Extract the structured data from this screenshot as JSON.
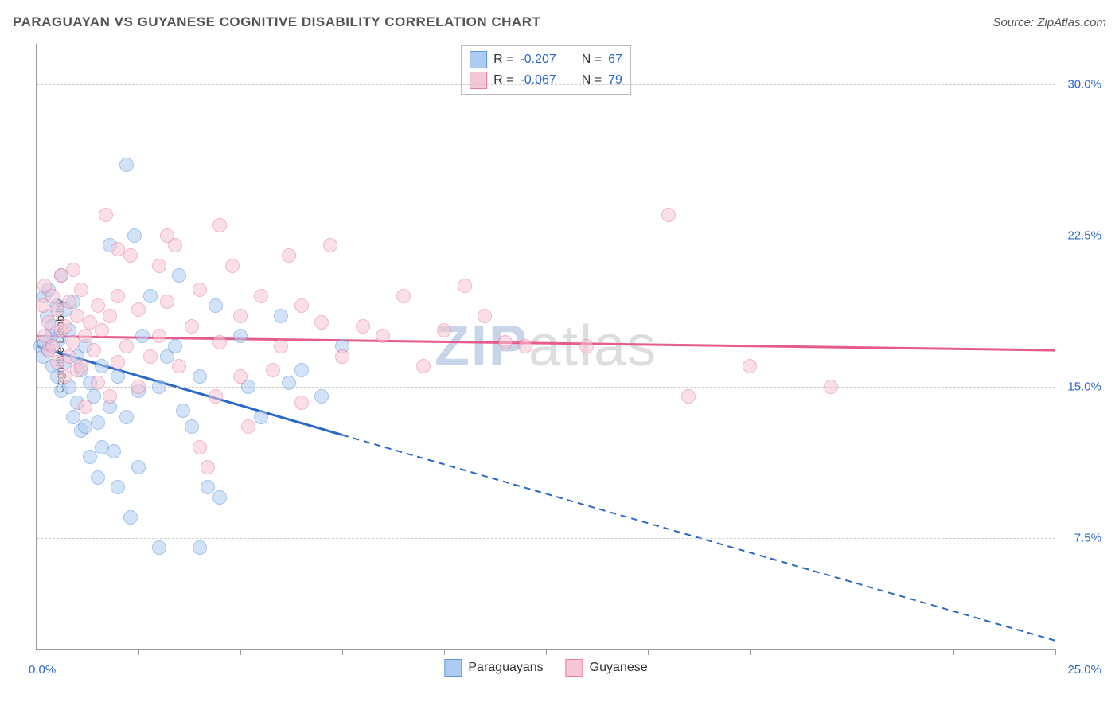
{
  "title": "PARAGUAYAN VS GUYANESE COGNITIVE DISABILITY CORRELATION CHART",
  "source": "Source: ZipAtlas.com",
  "watermark_bold": "ZIP",
  "watermark_rest": "atlas",
  "y_axis_label": "Cognitive Disability",
  "chart": {
    "type": "scatter",
    "xlim": [
      0,
      25
    ],
    "ylim": [
      2,
      32
    ],
    "x_ticks": [
      0,
      2.5,
      5,
      7.5,
      10,
      12.5,
      15,
      17.5,
      20,
      22.5,
      25
    ],
    "y_gridlines": [
      7.5,
      15.0,
      22.5,
      30.0
    ],
    "y_tick_labels": [
      "7.5%",
      "15.0%",
      "22.5%",
      "30.0%"
    ],
    "x_min_label": "0.0%",
    "x_max_label": "25.0%",
    "background_color": "#ffffff",
    "grid_color": "#cccccc",
    "axis_color": "#999999",
    "tick_label_color": "#2968c8",
    "point_radius": 9,
    "point_opacity": 0.55,
    "series": [
      {
        "name": "Paraguayans",
        "color_fill": "#aeccf2",
        "color_stroke": "#5a95dd",
        "R": "-0.207",
        "N": "67",
        "trend": {
          "color": "#2968c8",
          "width": 3,
          "x1": 0,
          "y1": 17.0,
          "x2_solid": 7.5,
          "y2_solid": 12.6,
          "x2_dash": 25,
          "y2_dash": 2.4
        },
        "points": [
          [
            0.1,
            17.0
          ],
          [
            0.15,
            16.5
          ],
          [
            0.2,
            19.5
          ],
          [
            0.2,
            17.2
          ],
          [
            0.25,
            18.5
          ],
          [
            0.3,
            19.8
          ],
          [
            0.3,
            16.8
          ],
          [
            0.35,
            17.5
          ],
          [
            0.4,
            18.0
          ],
          [
            0.4,
            16.0
          ],
          [
            0.5,
            19.0
          ],
          [
            0.5,
            15.5
          ],
          [
            0.55,
            17.3
          ],
          [
            0.6,
            20.5
          ],
          [
            0.6,
            14.8
          ],
          [
            0.7,
            16.2
          ],
          [
            0.7,
            18.8
          ],
          [
            0.8,
            15.0
          ],
          [
            0.8,
            17.8
          ],
          [
            0.9,
            19.2
          ],
          [
            0.9,
            13.5
          ],
          [
            1.0,
            16.5
          ],
          [
            1.0,
            14.2
          ],
          [
            1.1,
            15.8
          ],
          [
            1.1,
            12.8
          ],
          [
            1.2,
            17.0
          ],
          [
            1.2,
            13.0
          ],
          [
            1.3,
            15.2
          ],
          [
            1.3,
            11.5
          ],
          [
            1.4,
            14.5
          ],
          [
            1.5,
            13.2
          ],
          [
            1.5,
            10.5
          ],
          [
            1.6,
            16.0
          ],
          [
            1.6,
            12.0
          ],
          [
            1.8,
            22.0
          ],
          [
            1.8,
            14.0
          ],
          [
            1.9,
            11.8
          ],
          [
            2.0,
            15.5
          ],
          [
            2.0,
            10.0
          ],
          [
            2.2,
            26.0
          ],
          [
            2.2,
            13.5
          ],
          [
            2.3,
            8.5
          ],
          [
            2.5,
            14.8
          ],
          [
            2.5,
            11.0
          ],
          [
            2.6,
            17.5
          ],
          [
            2.8,
            19.5
          ],
          [
            3.0,
            15.0
          ],
          [
            3.0,
            7.0
          ],
          [
            3.2,
            16.5
          ],
          [
            3.4,
            17.0
          ],
          [
            3.5,
            20.5
          ],
          [
            3.6,
            13.8
          ],
          [
            3.8,
            13.0
          ],
          [
            4.0,
            15.5
          ],
          [
            4.0,
            7.0
          ],
          [
            4.2,
            10.0
          ],
          [
            4.4,
            19.0
          ],
          [
            4.5,
            9.5
          ],
          [
            5.0,
            17.5
          ],
          [
            5.2,
            15.0
          ],
          [
            5.5,
            13.5
          ],
          [
            6.0,
            18.5
          ],
          [
            6.2,
            15.2
          ],
          [
            6.5,
            15.8
          ],
          [
            7.0,
            14.5
          ],
          [
            7.5,
            17.0
          ],
          [
            2.4,
            22.5
          ]
        ]
      },
      {
        "name": "Guyanese",
        "color_fill": "#f7c6d4",
        "color_stroke": "#e97ba1",
        "R": "-0.067",
        "N": "79",
        "trend": {
          "color": "#e65a8c",
          "width": 3,
          "x1": 0,
          "y1": 17.5,
          "x2_solid": 25,
          "y2_solid": 16.8,
          "x2_dash": 25,
          "y2_dash": 16.8
        },
        "points": [
          [
            0.15,
            19.0
          ],
          [
            0.2,
            17.5
          ],
          [
            0.2,
            20.0
          ],
          [
            0.3,
            18.2
          ],
          [
            0.3,
            16.8
          ],
          [
            0.4,
            19.5
          ],
          [
            0.4,
            17.0
          ],
          [
            0.5,
            18.8
          ],
          [
            0.5,
            16.2
          ],
          [
            0.6,
            20.5
          ],
          [
            0.6,
            17.8
          ],
          [
            0.7,
            18.0
          ],
          [
            0.7,
            15.5
          ],
          [
            0.8,
            19.2
          ],
          [
            0.8,
            16.5
          ],
          [
            0.9,
            17.2
          ],
          [
            0.9,
            20.8
          ],
          [
            1.0,
            18.5
          ],
          [
            1.0,
            15.8
          ],
          [
            1.1,
            19.8
          ],
          [
            1.1,
            16.0
          ],
          [
            1.2,
            17.5
          ],
          [
            1.2,
            14.0
          ],
          [
            1.3,
            18.2
          ],
          [
            1.4,
            16.8
          ],
          [
            1.5,
            19.0
          ],
          [
            1.5,
            15.2
          ],
          [
            1.6,
            17.8
          ],
          [
            1.7,
            23.5
          ],
          [
            1.8,
            18.5
          ],
          [
            1.8,
            14.5
          ],
          [
            2.0,
            16.2
          ],
          [
            2.0,
            19.5
          ],
          [
            2.2,
            17.0
          ],
          [
            2.3,
            21.5
          ],
          [
            2.5,
            18.8
          ],
          [
            2.5,
            15.0
          ],
          [
            2.8,
            16.5
          ],
          [
            3.0,
            21.0
          ],
          [
            3.0,
            17.5
          ],
          [
            3.2,
            19.2
          ],
          [
            3.4,
            22.0
          ],
          [
            3.5,
            16.0
          ],
          [
            3.8,
            18.0
          ],
          [
            4.0,
            12.0
          ],
          [
            4.0,
            19.8
          ],
          [
            4.2,
            11.0
          ],
          [
            4.4,
            14.5
          ],
          [
            4.5,
            17.2
          ],
          [
            4.8,
            21.0
          ],
          [
            5.0,
            15.5
          ],
          [
            5.0,
            18.5
          ],
          [
            5.2,
            13.0
          ],
          [
            5.5,
            19.5
          ],
          [
            5.8,
            15.8
          ],
          [
            6.0,
            17.0
          ],
          [
            6.2,
            21.5
          ],
          [
            6.5,
            19.0
          ],
          [
            6.5,
            14.2
          ],
          [
            7.0,
            18.2
          ],
          [
            7.2,
            22.0
          ],
          [
            7.5,
            16.5
          ],
          [
            8.0,
            18.0
          ],
          [
            8.5,
            17.5
          ],
          [
            9.0,
            19.5
          ],
          [
            9.5,
            16.0
          ],
          [
            10.0,
            17.8
          ],
          [
            10.5,
            20.0
          ],
          [
            11.0,
            18.5
          ],
          [
            11.5,
            17.2
          ],
          [
            12.0,
            17.0
          ],
          [
            13.5,
            17.0
          ],
          [
            15.5,
            23.5
          ],
          [
            16.0,
            14.5
          ],
          [
            17.5,
            16.0
          ],
          [
            19.5,
            15.0
          ],
          [
            4.5,
            23.0
          ],
          [
            3.2,
            22.5
          ],
          [
            2.0,
            21.8
          ]
        ]
      }
    ]
  },
  "legend": {
    "items": [
      {
        "label": "Paraguayans",
        "fill": "#aeccf2",
        "stroke": "#5a95dd"
      },
      {
        "label": "Guyanese",
        "fill": "#f7c6d4",
        "stroke": "#e97ba1"
      }
    ]
  }
}
